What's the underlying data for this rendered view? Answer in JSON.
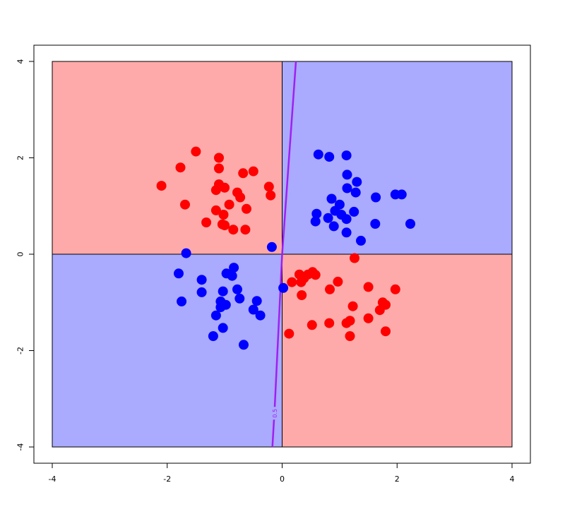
{
  "chart_data": {
    "type": "scatter",
    "title": "",
    "xlabel": "",
    "ylabel": "",
    "xlim": [
      -4,
      4
    ],
    "ylim": [
      -4,
      4
    ],
    "x_ticks": [
      -4,
      -2,
      0,
      2,
      4
    ],
    "y_ticks": [
      -4,
      -2,
      0,
      2,
      4
    ],
    "x_tick_labels": [
      "-4",
      "-2",
      "0",
      "2",
      "4"
    ],
    "y_tick_labels": [
      "-4",
      "-2",
      "0",
      "2",
      "4"
    ],
    "grid": false,
    "legend": "none",
    "regions": [
      {
        "x": [
          -4,
          0
        ],
        "y": [
          0,
          4
        ],
        "color": "#ffaaaa"
      },
      {
        "x": [
          0,
          4
        ],
        "y": [
          0,
          4
        ],
        "color": "#aaaaff"
      },
      {
        "x": [
          -4,
          0
        ],
        "y": [
          -4,
          0
        ],
        "color": "#aaaaff"
      },
      {
        "x": [
          0,
          4
        ],
        "y": [
          -4,
          0
        ],
        "color": "#ffaaaa"
      }
    ],
    "contour": {
      "label": "0.5",
      "color": "#a020f0",
      "points": [
        [
          0.24,
          4.0
        ],
        [
          0.0,
          0.0
        ],
        [
          -0.13,
          -3.2
        ],
        [
          -0.17,
          -4.0
        ]
      ],
      "label_at": [
        -0.12,
        -3.3
      ]
    },
    "series": [
      {
        "color": "#ff0000",
        "points": [
          [
            -1.5,
            2.13
          ],
          [
            -1.1,
            2.0
          ],
          [
            -1.1,
            1.78
          ],
          [
            -1.77,
            1.8
          ],
          [
            -0.68,
            1.68
          ],
          [
            -0.5,
            1.72
          ],
          [
            -2.1,
            1.42
          ],
          [
            -1.1,
            1.45
          ],
          [
            -1.15,
            1.33
          ],
          [
            -1.0,
            1.38
          ],
          [
            -0.78,
            1.28
          ],
          [
            -0.73,
            1.18
          ],
          [
            -0.2,
            1.22
          ],
          [
            -0.23,
            1.4
          ],
          [
            -1.69,
            1.03
          ],
          [
            -0.92,
            1.03
          ],
          [
            -0.62,
            0.94
          ],
          [
            -1.15,
            0.91
          ],
          [
            -1.02,
            0.82
          ],
          [
            -1.32,
            0.66
          ],
          [
            -1.04,
            0.62
          ],
          [
            -1.0,
            0.6
          ],
          [
            -0.85,
            0.51
          ],
          [
            -0.64,
            0.51
          ],
          [
            1.26,
            -0.08
          ],
          [
            0.53,
            -0.37
          ],
          [
            0.3,
            -0.42
          ],
          [
            0.45,
            -0.42
          ],
          [
            0.58,
            -0.43
          ],
          [
            0.38,
            -0.5
          ],
          [
            0.17,
            -0.58
          ],
          [
            0.33,
            -0.58
          ],
          [
            0.97,
            -0.57
          ],
          [
            0.83,
            -0.73
          ],
          [
            1.5,
            -0.68
          ],
          [
            1.97,
            -0.73
          ],
          [
            0.34,
            -0.85
          ],
          [
            1.75,
            -1.0
          ],
          [
            1.8,
            -1.05
          ],
          [
            1.23,
            -1.08
          ],
          [
            1.7,
            -1.16
          ],
          [
            1.5,
            -1.33
          ],
          [
            0.82,
            -1.43
          ],
          [
            0.52,
            -1.47
          ],
          [
            1.12,
            -1.43
          ],
          [
            1.18,
            -1.38
          ],
          [
            0.12,
            -1.65
          ],
          [
            1.18,
            -1.7
          ],
          [
            1.8,
            -1.6
          ]
        ]
      },
      {
        "color": "#0000ff",
        "points": [
          [
            0.63,
            2.07
          ],
          [
            0.82,
            2.02
          ],
          [
            1.12,
            2.05
          ],
          [
            1.13,
            1.65
          ],
          [
            1.3,
            1.5
          ],
          [
            1.13,
            1.37
          ],
          [
            1.28,
            1.28
          ],
          [
            1.63,
            1.18
          ],
          [
            1.97,
            1.24
          ],
          [
            2.08,
            1.24
          ],
          [
            0.86,
            1.15
          ],
          [
            1.0,
            1.03
          ],
          [
            0.92,
            0.9
          ],
          [
            1.25,
            0.88
          ],
          [
            0.6,
            0.84
          ],
          [
            0.8,
            0.75
          ],
          [
            1.12,
            0.73
          ],
          [
            1.03,
            0.82
          ],
          [
            0.58,
            0.68
          ],
          [
            0.9,
            0.58
          ],
          [
            1.62,
            0.63
          ],
          [
            2.23,
            0.63
          ],
          [
            1.12,
            0.45
          ],
          [
            1.37,
            0.28
          ],
          [
            -0.18,
            0.15
          ],
          [
            -1.67,
            0.02
          ],
          [
            -0.84,
            -0.28
          ],
          [
            -1.8,
            -0.4
          ],
          [
            -0.97,
            -0.4
          ],
          [
            -0.87,
            -0.45
          ],
          [
            -1.4,
            -0.53
          ],
          [
            -0.78,
            -0.73
          ],
          [
            -1.03,
            -0.77
          ],
          [
            -1.4,
            -0.79
          ],
          [
            -0.74,
            -0.92
          ],
          [
            -0.44,
            -0.97
          ],
          [
            0.02,
            -0.7
          ],
          [
            -1.75,
            -0.98
          ],
          [
            -1.07,
            -0.98
          ],
          [
            -0.98,
            -1.05
          ],
          [
            -1.07,
            -1.1
          ],
          [
            -0.5,
            -1.15
          ],
          [
            -0.38,
            -1.27
          ],
          [
            -1.15,
            -1.27
          ],
          [
            -1.03,
            -1.53
          ],
          [
            -1.2,
            -1.7
          ],
          [
            -0.67,
            -1.88
          ]
        ]
      }
    ]
  }
}
